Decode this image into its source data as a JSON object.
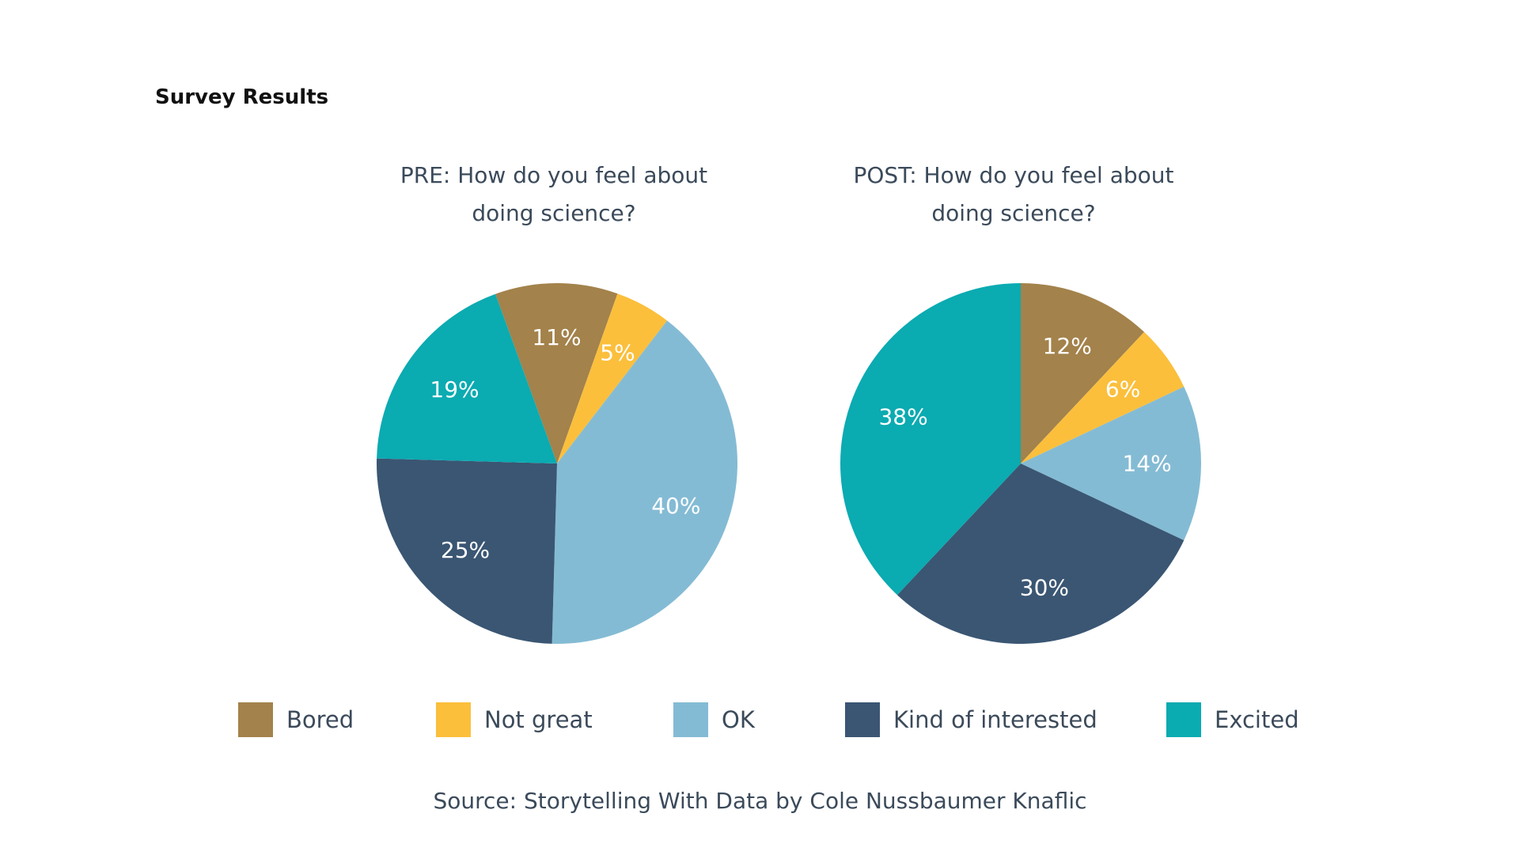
{
  "title": "Survey Results",
  "source": "Source: Storytelling With Data by Cole Nussbaumer Knaflic",
  "chart_data": [
    {
      "type": "pie",
      "title_lines": [
        "PRE: How do you feel about",
        "doing science?"
      ],
      "slices": [
        {
          "category": "Bored",
          "value": 11,
          "label": "11%"
        },
        {
          "category": "Not great",
          "value": 5,
          "label": "5%"
        },
        {
          "category": "OK",
          "value": 40,
          "label": "40%"
        },
        {
          "category": "Kind of interested",
          "value": 25,
          "label": "25%"
        },
        {
          "category": "Excited",
          "value": 19,
          "label": "19%"
        }
      ]
    },
    {
      "type": "pie",
      "title_lines": [
        "POST: How do you feel about",
        "doing science?"
      ],
      "slices": [
        {
          "category": "Bored",
          "value": 12,
          "label": "12%"
        },
        {
          "category": "Not great",
          "value": 6,
          "label": "6%"
        },
        {
          "category": "OK",
          "value": 14,
          "label": "14%"
        },
        {
          "category": "Kind of interested",
          "value": 30,
          "label": "30%"
        },
        {
          "category": "Excited",
          "value": 38,
          "label": "38%"
        }
      ]
    }
  ],
  "legend": [
    {
      "label": "Bored",
      "color": "#a3824b"
    },
    {
      "label": "Not great",
      "color": "#fbbf3c"
    },
    {
      "label": "OK",
      "color": "#84bbd4"
    },
    {
      "label": "Kind of interested",
      "color": "#3a5673"
    },
    {
      "label": "Excited",
      "color": "#0aabb1"
    }
  ],
  "legend_placement": "bottom"
}
